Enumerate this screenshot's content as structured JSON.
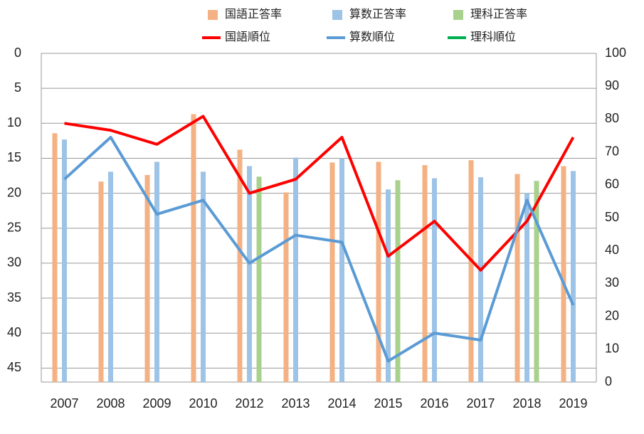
{
  "chart_data": {
    "type": "bar_line_combo",
    "categories": [
      "2007",
      "2008",
      "2009",
      "2010",
      "2012",
      "2013",
      "2014",
      "2015",
      "2016",
      "2017",
      "2018",
      "2019"
    ],
    "series": [
      {
        "name": "国語正答率",
        "type": "bar",
        "axis": "y2",
        "color": "#f4b183",
        "values": [
          75.7,
          61,
          63,
          81.5,
          70.7,
          57.7,
          66.8,
          67,
          66,
          67.5,
          63.3,
          65.7
        ]
      },
      {
        "name": "算数正答率",
        "type": "bar",
        "axis": "y2",
        "color": "#9dc3e6",
        "values": [
          73.8,
          64,
          67,
          64,
          65.7,
          68.3,
          68.1,
          58.6,
          62,
          62.3,
          57.5,
          64.2
        ]
      },
      {
        "name": "理科正答率",
        "type": "bar",
        "axis": "y2",
        "color": "#a9d18e",
        "values": [
          null,
          null,
          null,
          null,
          62.5,
          null,
          null,
          61.4,
          null,
          null,
          61.2,
          null
        ]
      },
      {
        "name": "国語順位",
        "type": "line",
        "axis": "y",
        "color": "#ff0000",
        "values": [
          10,
          11,
          13,
          9,
          20,
          18,
          12,
          29,
          24,
          31,
          24,
          12
        ]
      },
      {
        "name": "算数順位",
        "type": "line",
        "axis": "y",
        "color": "#5b9bd5",
        "values": [
          18,
          12,
          23,
          21,
          30,
          26,
          27,
          44,
          40,
          41,
          21,
          36
        ]
      },
      {
        "name": "理科順位",
        "type": "line",
        "axis": "y",
        "color": "#00b050",
        "values": [
          null,
          null,
          null,
          null,
          null,
          null,
          null,
          null,
          null,
          null,
          null,
          null
        ]
      }
    ],
    "ylim": [
      0,
      47
    ],
    "y_inverted": true,
    "yticks": [
      0,
      5,
      10,
      15,
      20,
      25,
      30,
      35,
      40,
      45
    ],
    "y2lim": [
      0,
      100
    ],
    "y2ticks": [
      0,
      10,
      20,
      30,
      40,
      50,
      60,
      70,
      80,
      90,
      100
    ],
    "grid": true
  }
}
